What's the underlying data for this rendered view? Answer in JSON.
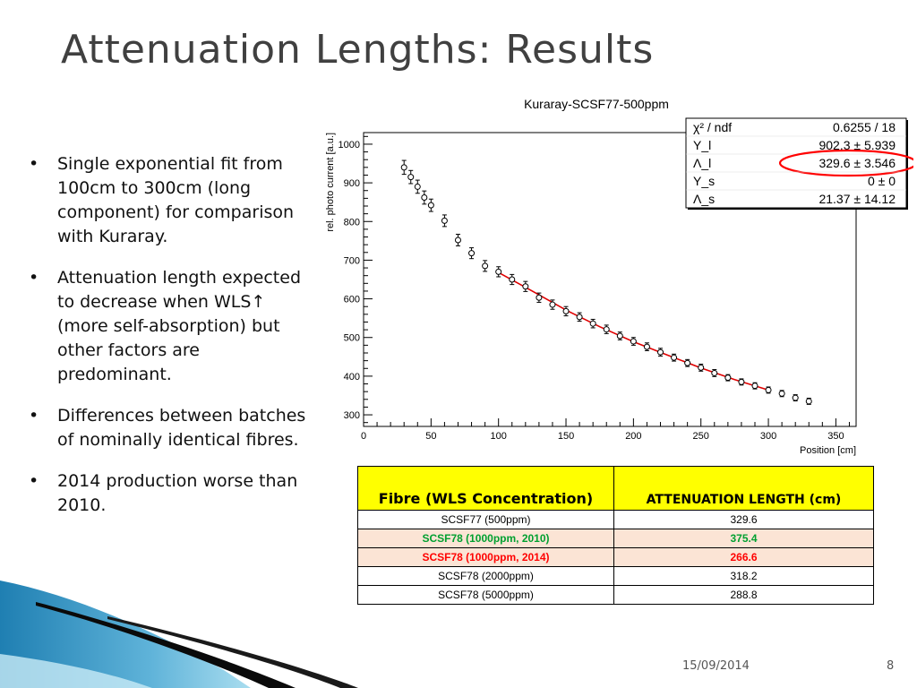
{
  "slide": {
    "title": "Attenuation Lengths: Results",
    "bullets": [
      "Single exponential fit from 100cm to 300cm (long component) for comparison with Kuraray.",
      "Attenuation length expected to decrease when WLS↑ (more self-absorption) but other factors are predominant.",
      "Differences between batches of nominally identical fibres.",
      "2014 production worse than 2010."
    ],
    "bullet_symbol": "•",
    "footer": {
      "date": "15/09/2014",
      "page": "8"
    }
  },
  "chart_data": {
    "type": "scatter",
    "title": "Kuraray-SCSF77-500ppm",
    "xlabel": "Position [cm]",
    "ylabel": "rel. photo current [a.u.]",
    "xlim": [
      0,
      365
    ],
    "ylim": [
      270,
      1030
    ],
    "xticks": [
      0,
      50,
      100,
      150,
      200,
      250,
      300,
      350
    ],
    "yticks": [
      300,
      400,
      500,
      600,
      700,
      800,
      900,
      1000
    ],
    "grid": false,
    "colors": {
      "markers": "#000000",
      "fit": "#e00000",
      "highlight_ellipse": "#ff0000"
    },
    "series": [
      {
        "x": [
          30,
          35,
          40,
          45,
          50,
          60,
          70,
          80,
          90,
          100,
          110,
          120,
          130,
          140,
          150,
          160,
          170,
          180,
          190,
          200,
          210,
          220,
          230,
          240,
          250,
          260,
          270,
          280,
          290,
          300,
          310,
          320,
          330
        ],
        "y": [
          940,
          915,
          890,
          862,
          842,
          802,
          752,
          718,
          685,
          670,
          650,
          632,
          603,
          585,
          568,
          553,
          536,
          521,
          504,
          490,
          476,
          462,
          448,
          434,
          422,
          408,
          396,
          385,
          375,
          364,
          355,
          344,
          335
        ],
        "yerr": [
          18,
          17,
          17,
          17,
          16,
          15,
          15,
          14,
          14,
          13,
          13,
          13,
          12,
          12,
          12,
          11,
          11,
          11,
          10,
          10,
          10,
          10,
          9,
          9,
          9,
          9,
          8,
          8,
          8,
          8,
          8,
          8,
          8
        ]
      }
    ],
    "fit": {
      "type": "exponential",
      "range": [
        100,
        300
      ],
      "x": [
        100,
        125,
        150,
        175,
        200,
        225,
        250,
        275,
        300
      ],
      "y": [
        668,
        620,
        571,
        528,
        489,
        455,
        421,
        391,
        364
      ]
    },
    "stats_box": {
      "rows": [
        {
          "label": "χ² / ndf",
          "value": "0.6255 / 18"
        },
        {
          "label": "Y_l",
          "value": "902.3 ± 5.939"
        },
        {
          "label": "Λ_l",
          "value": "329.6 ± 3.546",
          "highlighted": true
        },
        {
          "label": "Y_s",
          "value": "0 ±     0"
        },
        {
          "label": "Λ_s",
          "value": "21.37 ± 14.12"
        }
      ]
    }
  },
  "table": {
    "headers": [
      "Fibre (WLS Concentration)",
      "ATTENUATION LENGTH (cm)"
    ],
    "rows": [
      {
        "fibre": "SCSF77 (500ppm)",
        "length": "329.6",
        "style": ""
      },
      {
        "fibre": "SCSF78 (1000ppm, 2010)",
        "length": "375.4",
        "style": "hl green"
      },
      {
        "fibre": "SCSF78 (1000ppm, 2014)",
        "length": "266.6",
        "style": "hl red"
      },
      {
        "fibre": "SCSF78 (2000ppm)",
        "length": "318.2",
        "style": ""
      },
      {
        "fibre": "SCSF78 (5000ppm)",
        "length": "288.8",
        "style": ""
      }
    ],
    "colors": {
      "header": "#ffff00",
      "highlight_row": "#fbe4d5",
      "green_text": "#00a030",
      "red_text": "#ff0000"
    }
  },
  "theme": {
    "wave_dark": "#0a0a0a",
    "wave_blue": "#1f7fb2",
    "wave_light": "#7ec8e3"
  }
}
